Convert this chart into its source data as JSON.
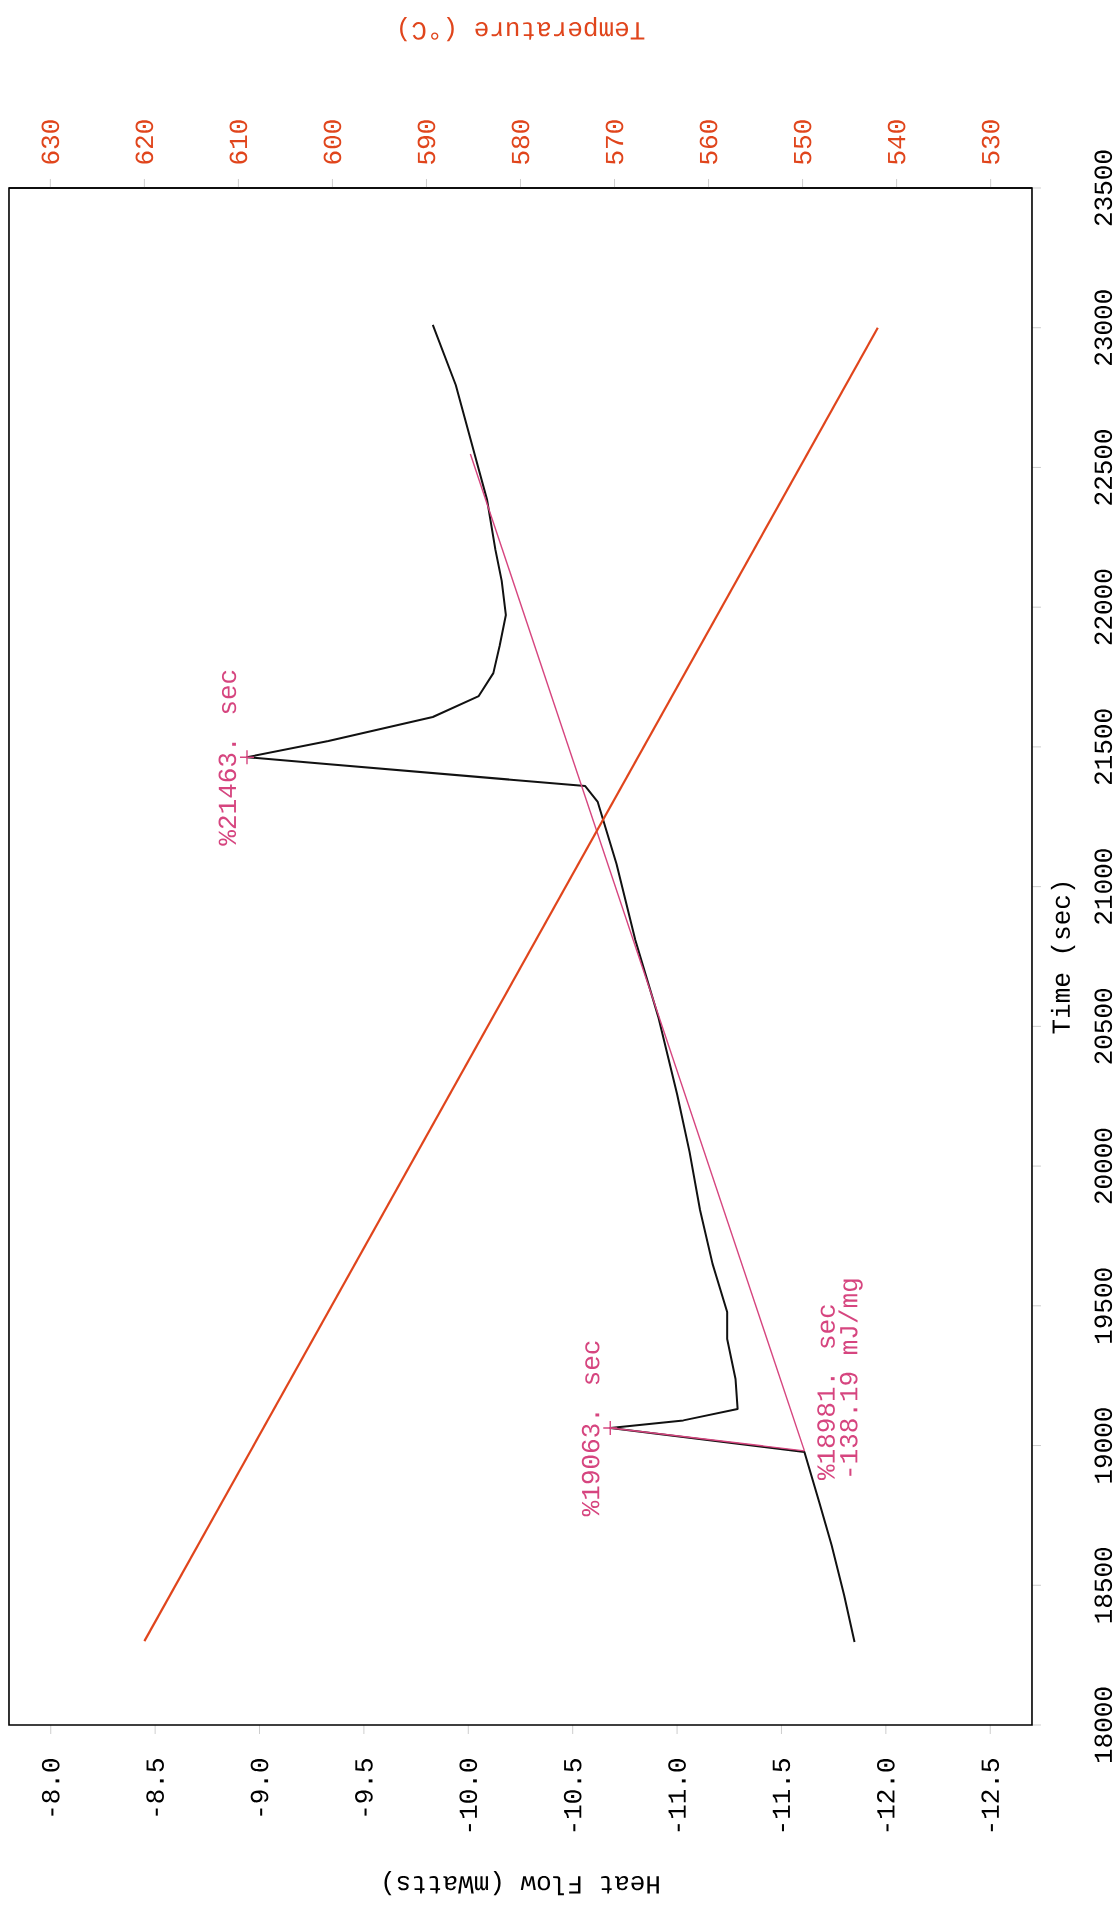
{
  "chart_data": {
    "type": "line",
    "xlabel": "Heat Flow (mWatts)",
    "ylabel": "Time (sec)",
    "x2label": "Temperature (°C)",
    "xlim": [
      -7.8,
      -12.7
    ],
    "xticks": [
      {
        "value": -8,
        "label": "-8.0"
      },
      -8.5,
      {
        "value": -9,
        "label": "-9.0"
      },
      -9.5,
      {
        "value": -10,
        "label": "-10.0"
      },
      -10.5,
      {
        "value": -11,
        "label": "-11.0"
      },
      -11.5,
      {
        "value": -12,
        "label": "-12.0"
      },
      -12.5
    ],
    "ylim": [
      18000,
      23500
    ],
    "yticks": [
      18000,
      18500,
      19000,
      19500,
      20000,
      20500,
      21000,
      21500,
      22000,
      22500,
      23000,
      23500
    ],
    "x2lim": [
      634.4,
      525.6
    ],
    "x2ticks": [
      630,
      620,
      610,
      600,
      590,
      580,
      570,
      560,
      550,
      540,
      530
    ],
    "series": [
      {
        "color": "#111111",
        "x": [
          -11.85,
          -11.8,
          -11.74,
          -11.68,
          -11.61,
          -10.68,
          -11.03,
          -11.29,
          -11.28,
          -11.24,
          -11.24,
          -11.17,
          -11.11,
          -11.06,
          -11.0,
          -10.91,
          -10.8,
          -10.71,
          -10.62,
          -10.56,
          -8.94,
          -9.33,
          -9.83,
          -10.05,
          -10.12,
          -10.15,
          -10.18,
          -10.16,
          -10.13,
          -10.09,
          -10.03,
          -9.94,
          -9.83
        ],
        "values": [
          18297,
          18465,
          18644,
          18800,
          18977,
          19063,
          19090,
          19131,
          19238,
          19381,
          19478,
          19650,
          19843,
          20050,
          20258,
          20534,
          20809,
          21081,
          21303,
          21360,
          21463,
          21521,
          21607,
          21682,
          21764,
          21861,
          21972,
          22094,
          22205,
          22384,
          22548,
          22795,
          23010
        ]
      },
      {
        "type": "line",
        "color": "#d6457f",
        "x": [
          -11.61,
          -10.01
        ],
        "values": [
          18981,
          22548
        ]
      },
      {
        "type": "line",
        "color": "#d6457f",
        "x": [
          -11.61,
          -10.68
        ],
        "values": [
          18981,
          19063
        ]
      },
      {
        "type": "scatter",
        "marker": "cross",
        "color": "#d6457f",
        "x": [
          -10.68,
          -8.94
        ],
        "values": [
          19063,
          21463
        ]
      },
      {
        "type": "line",
        "color": "#e0451c",
        "axis": "x2",
        "x": [
          620,
          542
        ],
        "values": [
          18300,
          23000
        ]
      }
    ],
    "annotations": [
      {
        "text": "%19063. sec",
        "x": -10.68,
        "y": 19063
      },
      {
        "text": "%18981. sec",
        "x": -11.61,
        "y": 18981
      },
      "-138.19 mJ/mg",
      {
        "text": "%21463. sec",
        "x": -8.94,
        "y": 21463
      }
    ]
  }
}
